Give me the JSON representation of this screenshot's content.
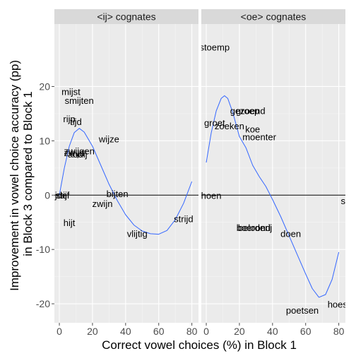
{
  "chart_data": {
    "type": "scatter",
    "xlabel": "Correct vowel choices (%) in Block 1",
    "ylabel_lines": [
      "Improvement in vowel choice accuracy (pp)",
      "in Block 3 compared to Block 1"
    ],
    "xlim": [
      -3,
      84
    ],
    "ylim": [
      -23.5,
      31.5
    ],
    "x_ticks": [
      0,
      20,
      40,
      60,
      80
    ],
    "y_ticks": [
      -20,
      -10,
      0,
      10,
      20
    ],
    "grid": true,
    "hline_y": 0,
    "panels": [
      {
        "title": "<ij> cognates",
        "points": [
          {
            "label": "mijst",
            "x": 7,
            "y": 19
          },
          {
            "label": "smijten",
            "x": 12,
            "y": 17.4
          },
          {
            "label": "rijp",
            "x": 6,
            "y": 14
          },
          {
            "label": "tijd",
            "x": 10,
            "y": 13.5
          },
          {
            "label": "wijze",
            "x": 30,
            "y": 10.3
          },
          {
            "label": "zwijgen",
            "x": 12,
            "y": 8.1
          },
          {
            "label": "zwijn",
            "x": 9,
            "y": 7.8
          },
          {
            "label": "abdij",
            "x": 11,
            "y": 7.5
          },
          {
            "label": "ijdel",
            "x": 1,
            "y": 0
          },
          {
            "label": "stijf",
            "x": 2,
            "y": 0
          },
          {
            "label": "bijten",
            "x": 35,
            "y": 0.2
          },
          {
            "label": "zwijn",
            "x": 26,
            "y": -1.6
          },
          {
            "label": "hijt",
            "x": 6,
            "y": -5.1
          },
          {
            "label": "strijd",
            "x": 75,
            "y": -4.4
          },
          {
            "label": "vlijtig",
            "x": 47,
            "y": -7.1
          }
        ],
        "smooth": {
          "x": [
            0,
            3,
            6,
            9,
            12,
            15,
            20,
            25,
            30,
            35,
            40,
            45,
            50,
            55,
            60,
            65,
            70,
            75,
            80
          ],
          "y": [
            0,
            5,
            9,
            11.5,
            12.3,
            11.6,
            9,
            5.5,
            2,
            -1,
            -3.6,
            -5.5,
            -6.6,
            -7.1,
            -7.2,
            -6.5,
            -4.5,
            -1.5,
            2.5
          ]
        }
      },
      {
        "title": "<oe> cognates",
        "points": [
          {
            "label": "stoemp",
            "x": 5,
            "y": 27.2
          },
          {
            "label": "gezoend",
            "x": 25,
            "y": 15.5
          },
          {
            "label": "groep",
            "x": 25,
            "y": 15.5
          },
          {
            "label": "groet",
            "x": 5,
            "y": 13.3
          },
          {
            "label": "zoeken",
            "x": 14,
            "y": 12.7
          },
          {
            "label": "koe",
            "x": 28,
            "y": 12.1
          },
          {
            "label": "moenter",
            "x": 32,
            "y": 10.7
          },
          {
            "label": "hoen",
            "x": 3,
            "y": -0.1
          },
          {
            "label": "stoep",
            "x": 88,
            "y": -1.1
          },
          {
            "label": "boerderij",
            "x": 29,
            "y": -6
          },
          {
            "label": "beloond",
            "x": 29,
            "y": -6
          },
          {
            "label": "doen",
            "x": 51,
            "y": -7.1
          },
          {
            "label": "hoest",
            "x": 80,
            "y": -20.1
          },
          {
            "label": "poetsen",
            "x": 58,
            "y": -21.2
          }
        ],
        "smooth": {
          "x": [
            0,
            3,
            6,
            9,
            11,
            13,
            16,
            20,
            24,
            28,
            32,
            36,
            40,
            45,
            50,
            55,
            60,
            64,
            68,
            72,
            76,
            80
          ],
          "y": [
            6,
            11.5,
            15.5,
            17.8,
            18.3,
            17.8,
            15.2,
            10.8,
            8.7,
            5.5,
            3.4,
            1.6,
            -0.8,
            -4,
            -7.5,
            -11,
            -14.5,
            -17.2,
            -18.8,
            -18.3,
            -15.5,
            -10.5
          ]
        }
      }
    ]
  }
}
